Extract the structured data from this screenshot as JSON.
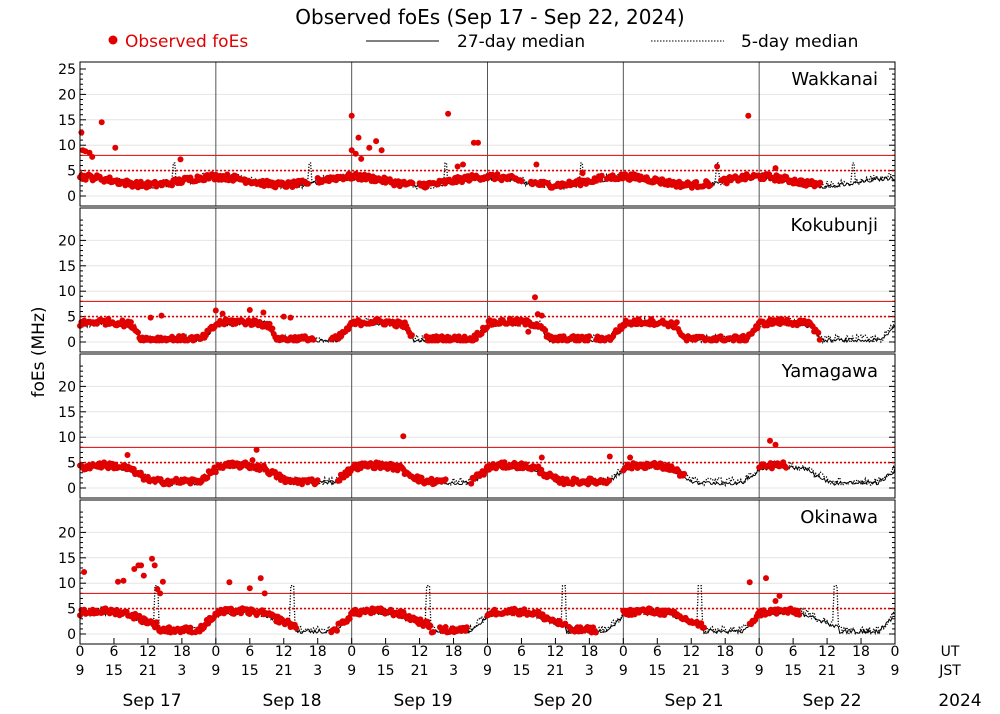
{
  "chart_data": {
    "type": "scatter",
    "title": "Observed foEs (Sep 17 - Sep 22, 2024)",
    "ylabel": "foEs (MHz)",
    "legend": [
      {
        "name": "Observed foEs",
        "style": "red-dot"
      },
      {
        "name": "27-day median",
        "style": "solid-line"
      },
      {
        "name": "5-day median",
        "style": "dotted-line"
      }
    ],
    "legend_position": "top",
    "x_range_days": [
      0,
      6
    ],
    "x_ticks_ut": [
      "0",
      "6",
      "12",
      "18",
      "0",
      "6",
      "12",
      "18",
      "0",
      "6",
      "12",
      "18",
      "0",
      "6",
      "12",
      "18",
      "0",
      "6",
      "12",
      "18",
      "0",
      "6",
      "12",
      "18",
      "0"
    ],
    "x_ticks_jst": [
      "9",
      "15",
      "21",
      "3",
      "9",
      "15",
      "21",
      "3",
      "9",
      "15",
      "21",
      "3",
      "9",
      "15",
      "21",
      "3",
      "9",
      "15",
      "21",
      "3",
      "9",
      "15",
      "21",
      "3",
      "9"
    ],
    "x_row_labels": {
      "ut": "UT",
      "jst": "JST"
    },
    "day_labels": [
      "Sep 17",
      "Sep 18",
      "Sep 19",
      "Sep 20",
      "Sep 21",
      "Sep 22"
    ],
    "year_label": "2024",
    "colors": {
      "observed": "#e00000",
      "reference_line": "#e00000",
      "median": "#000000",
      "frame": "#000000",
      "grid": "#dddddd"
    },
    "reference_lines_mhz": {
      "solid": 8,
      "dotted": 5
    },
    "panels": [
      {
        "station": "Wakkanai",
        "ylim": [
          0,
          25
        ],
        "yticks": [
          "0",
          "5",
          "10",
          "15",
          "20",
          "25"
        ],
        "outliers": [
          [
            0.01,
            12.5
          ],
          [
            0.02,
            9.0
          ],
          [
            0.04,
            8.8
          ],
          [
            0.07,
            8.5
          ],
          [
            0.09,
            7.7
          ],
          [
            0.16,
            14.5
          ],
          [
            0.26,
            9.5
          ],
          [
            0.74,
            7.2
          ],
          [
            2.0,
            15.8
          ],
          [
            2.0,
            9.0
          ],
          [
            2.03,
            8.3
          ],
          [
            2.05,
            11.5
          ],
          [
            2.07,
            7.3
          ],
          [
            2.13,
            9.5
          ],
          [
            2.18,
            10.8
          ],
          [
            2.22,
            9.0
          ],
          [
            2.71,
            16.2
          ],
          [
            2.78,
            5.8
          ],
          [
            2.82,
            6.2
          ],
          [
            2.9,
            10.5
          ],
          [
            2.93,
            10.5
          ],
          [
            3.36,
            6.2
          ],
          [
            3.7,
            4.5
          ],
          [
            4.69,
            5.8
          ],
          [
            4.92,
            15.8
          ],
          [
            5.12,
            5.5
          ]
        ],
        "observed_ranges": [
          [
            0.0,
            0.95
          ],
          [
            0.97,
            1.68
          ],
          [
            1.75,
            2.45
          ],
          [
            2.5,
            3.25
          ],
          [
            3.32,
            3.85
          ],
          [
            3.88,
            4.65
          ],
          [
            4.72,
            5.45
          ]
        ],
        "observed_profile": "wak",
        "median27_profile": "wak_med",
        "median5_profile": "wak_med5"
      },
      {
        "station": "Kokubunji",
        "ylim": [
          0,
          25
        ],
        "yticks": [
          "0",
          "5",
          "10",
          "15",
          "20"
        ],
        "outliers": [
          [
            0.52,
            4.8
          ],
          [
            0.6,
            5.2
          ],
          [
            1.0,
            6.2
          ],
          [
            1.05,
            5.6
          ],
          [
            1.25,
            6.3
          ],
          [
            1.35,
            5.8
          ],
          [
            1.5,
            5.0
          ],
          [
            1.55,
            4.8
          ],
          [
            3.35,
            8.8
          ],
          [
            3.37,
            5.5
          ],
          [
            3.4,
            5.2
          ],
          [
            3.3,
            2.0
          ]
        ],
        "observed_ranges": [
          [
            0.0,
            1.72
          ],
          [
            1.85,
            2.45
          ],
          [
            2.55,
            3.75
          ],
          [
            3.8,
            5.45
          ]
        ],
        "observed_profile": "kok",
        "median27_profile": "kok_med",
        "median5_profile": "kok_med5"
      },
      {
        "station": "Yamagawa",
        "ylim": [
          0,
          25
        ],
        "yticks": [
          "0",
          "5",
          "10",
          "15",
          "20"
        ],
        "outliers": [
          [
            0.35,
            6.5
          ],
          [
            1.3,
            7.5
          ],
          [
            1.27,
            5.5
          ],
          [
            2.38,
            10.2
          ],
          [
            3.4,
            6.0
          ],
          [
            3.9,
            6.2
          ],
          [
            4.05,
            6.0
          ],
          [
            5.08,
            9.3
          ],
          [
            5.12,
            8.5
          ]
        ],
        "observed_ranges": [
          [
            0.0,
            1.0
          ],
          [
            1.02,
            1.75
          ],
          [
            1.9,
            2.7
          ],
          [
            2.88,
            3.05
          ],
          [
            3.0,
            3.5
          ],
          [
            3.5,
            3.9
          ],
          [
            4.0,
            4.45
          ],
          [
            5.0,
            5.2
          ]
        ],
        "observed_profile": "yam",
        "median27_profile": "yam_med",
        "median5_profile": "yam_med5"
      },
      {
        "station": "Okinawa",
        "ylim": [
          0,
          25
        ],
        "yticks": [
          "0",
          "5",
          "10",
          "15",
          "20"
        ],
        "outliers": [
          [
            0.03,
            12.2
          ],
          [
            0.28,
            10.3
          ],
          [
            0.32,
            10.5
          ],
          [
            0.4,
            12.8
          ],
          [
            0.43,
            13.5
          ],
          [
            0.45,
            13.5
          ],
          [
            0.47,
            11.5
          ],
          [
            0.53,
            14.8
          ],
          [
            0.55,
            13.5
          ],
          [
            0.57,
            8.8
          ],
          [
            0.59,
            8.0
          ],
          [
            0.61,
            10.3
          ],
          [
            1.1,
            10.2
          ],
          [
            1.25,
            9.0
          ],
          [
            1.33,
            11.0
          ],
          [
            1.36,
            8.0
          ],
          [
            4.93,
            10.2
          ],
          [
            5.05,
            11.0
          ],
          [
            5.12,
            6.5
          ],
          [
            5.15,
            7.5
          ]
        ],
        "observed_ranges": [
          [
            0.0,
            0.83
          ],
          [
            0.85,
            1.05
          ],
          [
            1.05,
            1.6
          ],
          [
            1.85,
            2.6
          ],
          [
            2.65,
            2.85
          ],
          [
            3.0,
            3.58
          ],
          [
            3.6,
            3.8
          ],
          [
            4.0,
            4.6
          ],
          [
            4.93,
            5.3
          ]
        ],
        "observed_profile": "oki",
        "median27_profile": "oki_med",
        "median5_profile": "oki_med5"
      }
    ]
  }
}
